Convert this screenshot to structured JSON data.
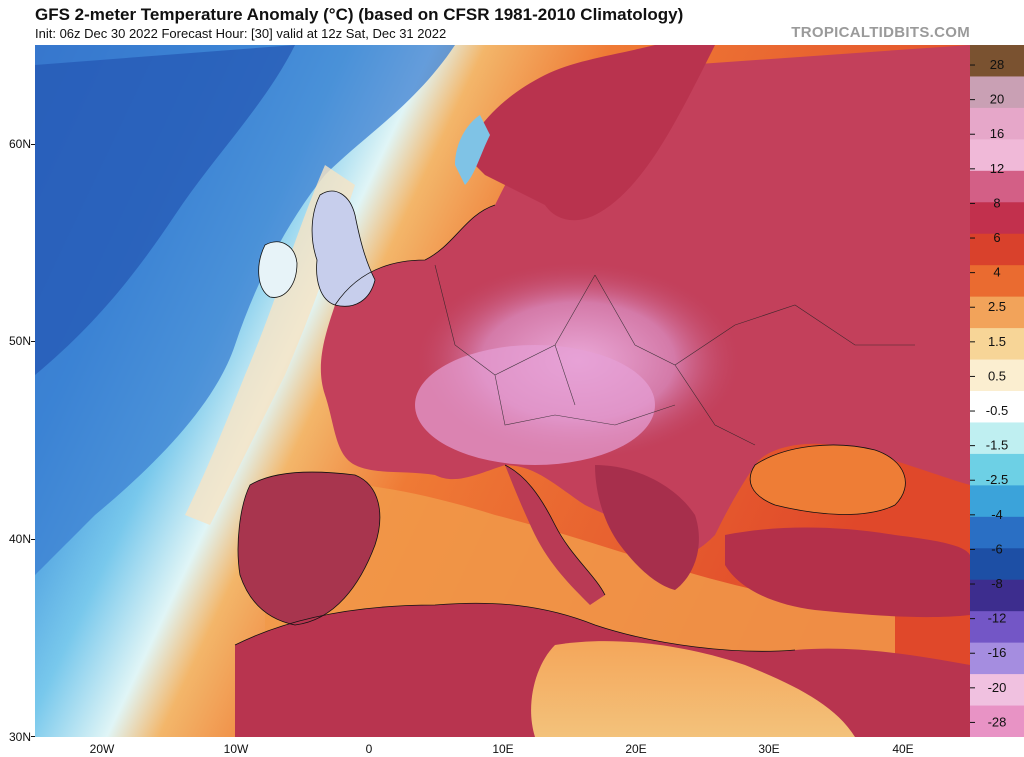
{
  "header": {
    "title": "GFS 2-meter Temperature Anomaly (°C) (based on CFSR 1981-2010 Climatology)",
    "subtitle": "Init: 06z Dec 30 2022   Forecast Hour: [30]   valid at 12z Sat, Dec 31 2022",
    "credit": "TROPICALTIDBITS.COM"
  },
  "axes": {
    "lat_labels": [
      "60N",
      "50N",
      "40N",
      "30N"
    ],
    "lon_labels": [
      "20W",
      "10W",
      "0",
      "10E",
      "20E",
      "30E",
      "40E"
    ]
  },
  "colorbar": {
    "labels": [
      "28",
      "20",
      "16",
      "12",
      "8",
      "6",
      "4",
      "2.5",
      "1.5",
      "0.5",
      "-0.5",
      "-1.5",
      "-2.5",
      "-4",
      "-6",
      "-8",
      "-12",
      "-16",
      "-20",
      "-28"
    ],
    "colors": [
      "#7a5230",
      "#c9a0b4",
      "#e6a7c9",
      "#f0b9d8",
      "#d35f86",
      "#c2304d",
      "#d9412c",
      "#ea6b30",
      "#f2a35a",
      "#f7d597",
      "#fbeed0",
      "#ffffff",
      "#bfeff1",
      "#6dd0e5",
      "#3ba3da",
      "#2a6fc4",
      "#1d4fa5",
      "#3d2d8e",
      "#7356c6",
      "#a58de0",
      "#f0c1e0",
      "#e893c5"
    ]
  },
  "map": {
    "colors": {
      "ocean_cold": "#2f6fc8",
      "ocean_cool": "#5ab2e6",
      "ocean_neutral": "#bdeaf5",
      "ocean_warm": "#f08a3a",
      "ocean_hot": "#e2512b",
      "land_warm": "#c03c56",
      "land_hot": "#e79ad0",
      "coast": "#111111"
    }
  }
}
